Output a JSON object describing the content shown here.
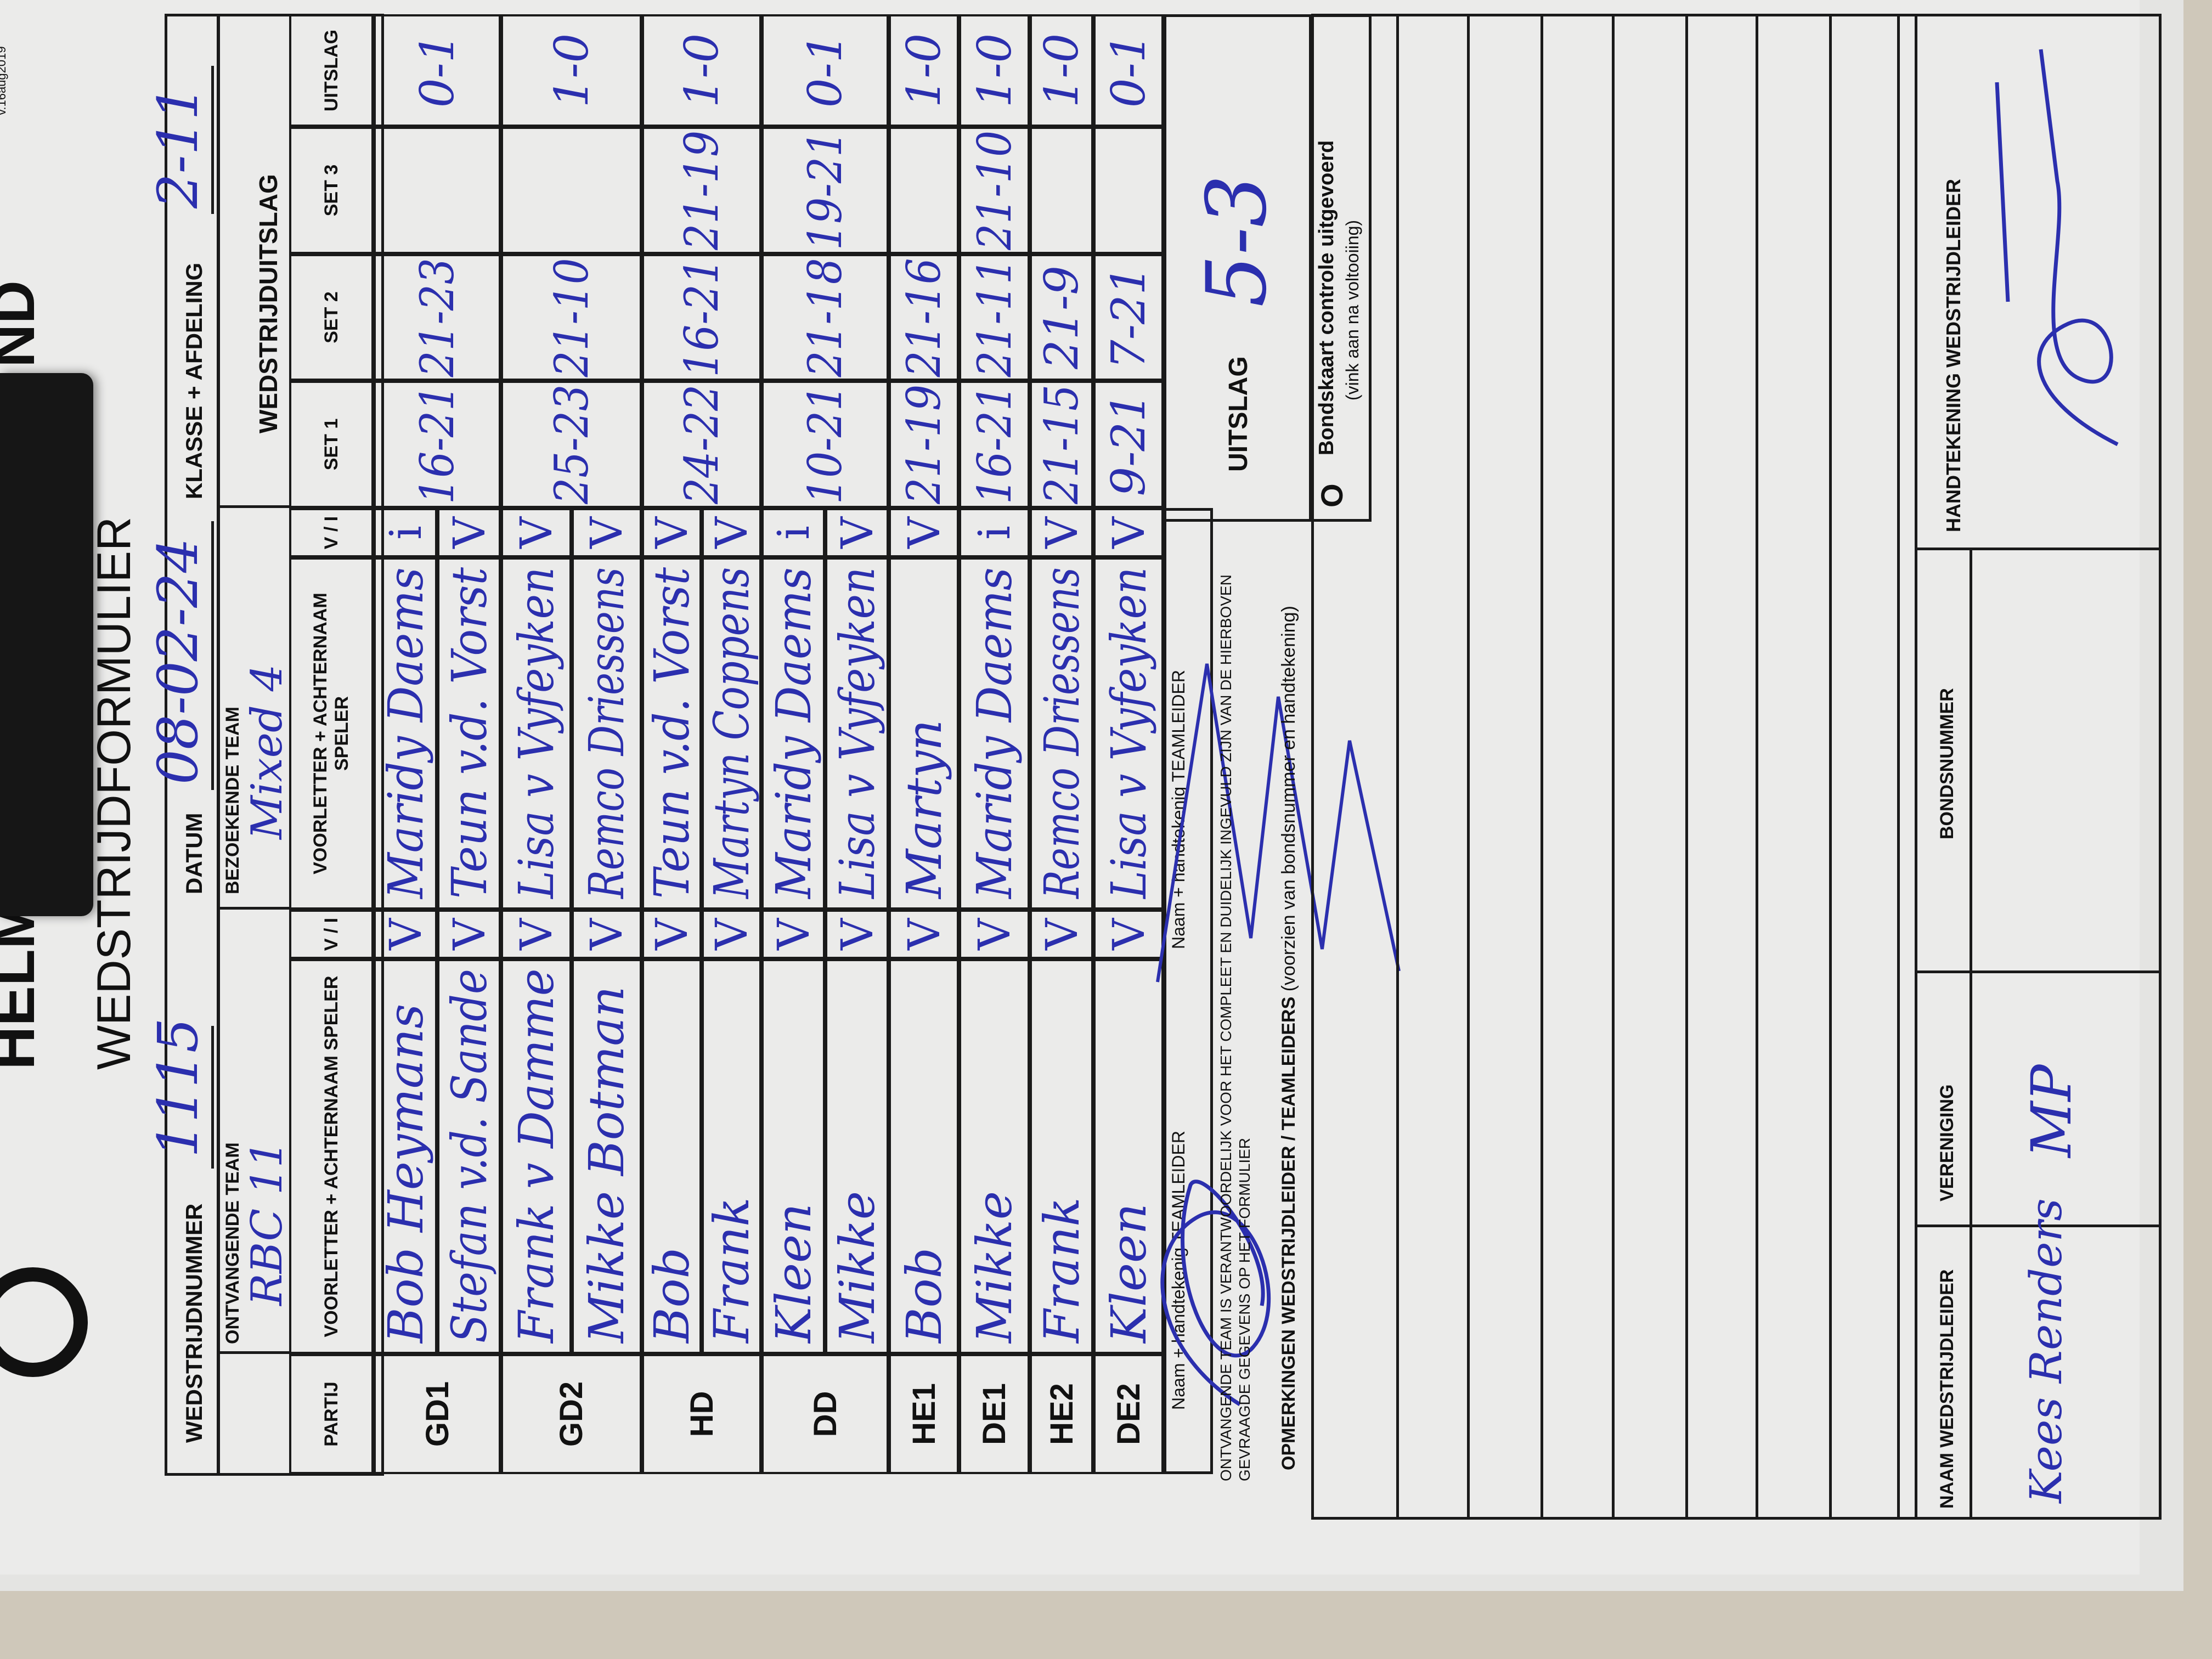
{
  "header": {
    "logo_text": "HELMO",
    "logo_text_right": "ND",
    "title": "WEDSTRIJDFORMULIER",
    "version": "v.16aug2019",
    "wedstrijdnummer_label": "WEDSTRIJDNUMMER",
    "wedstrijdnummer": "1115",
    "datum_label": "DATUM",
    "datum": "08-02-24",
    "klasse_label": "KLASSE + AFDELING",
    "klasse": "2-11",
    "ontvangende_label": "ONTVANGENDE TEAM",
    "ontvangende": "RBC 11",
    "bezoekende_label": "BEZOEKENDE TEAM",
    "bezoekende": "Mixed 4",
    "wedstrijduitslag_label": "WEDSTRIJDUITSLAG"
  },
  "columns": {
    "partij": "PARTIJ",
    "speler": "VOORLETTER + ACHTERNAAM SPELER",
    "vi": "V / I",
    "set1": "SET 1",
    "set2": "SET 2",
    "set3": "SET 3",
    "uitslag": "UITSLAG"
  },
  "matches": [
    {
      "partij": "GD1",
      "home": [
        "Bob Heymans",
        "Stefan v.d. Sande"
      ],
      "home_vi": [
        "V",
        "V"
      ],
      "away": [
        "Maridy Daems",
        "Teun v.d. Vorst"
      ],
      "away_vi": [
        "i",
        "V"
      ],
      "set1": "16-21",
      "set2": "21-23",
      "set3": "",
      "uitslag": "0-1"
    },
    {
      "partij": "GD2",
      "home": [
        "Frank v Damme",
        "Mikke Botman"
      ],
      "home_vi": [
        "V",
        "V"
      ],
      "away": [
        "Lisa v Vyfeyken",
        "Remco Driessens"
      ],
      "away_vi": [
        "V",
        "V"
      ],
      "set1": "25-23",
      "set2": "21-10",
      "set3": "",
      "uitslag": "1-0"
    },
    {
      "partij": "HD",
      "home": [
        "Bob",
        "Frank"
      ],
      "home_vi": [
        "V",
        "V"
      ],
      "away": [
        "Teun v.d. Vorst",
        "Martyn Coppens"
      ],
      "away_vi": [
        "V",
        "V"
      ],
      "set1": "24-22",
      "set2": "16-21",
      "set3": "21-19",
      "uitslag": "1-0"
    },
    {
      "partij": "DD",
      "home": [
        "Kleen",
        "Mikke"
      ],
      "home_vi": [
        "V",
        "V"
      ],
      "away": [
        "Maridy Daems",
        "Lisa v Vyfeyken"
      ],
      "away_vi": [
        "i",
        "V"
      ],
      "set1": "10-21",
      "set2": "21-18",
      "set3": "19-21",
      "uitslag": "0-1"
    },
    {
      "partij": "HE1",
      "home": [
        "Bob"
      ],
      "home_vi": [
        "V"
      ],
      "away": [
        "Martyn"
      ],
      "away_vi": [
        "V"
      ],
      "set1": "21-19",
      "set2": "21-16",
      "set3": "",
      "uitslag": "1-0"
    },
    {
      "partij": "DE1",
      "home": [
        "Mikke"
      ],
      "home_vi": [
        "V"
      ],
      "away": [
        "Maridy Daems"
      ],
      "away_vi": [
        "i"
      ],
      "set1": "16-21",
      "set2": "21-11",
      "set3": "21-10",
      "uitslag": "1-0"
    },
    {
      "partij": "HE2",
      "home": [
        "Frank"
      ],
      "home_vi": [
        "V"
      ],
      "away": [
        "Remco Driessens"
      ],
      "away_vi": [
        "V"
      ],
      "set1": "21-15",
      "set2": "21-9",
      "set3": "",
      "uitslag": "1-0"
    },
    {
      "partij": "DE2",
      "home": [
        "Kleen"
      ],
      "home_vi": [
        "V"
      ],
      "away": [
        "Lisa v Vyfeyken"
      ],
      "away_vi": [
        "V"
      ],
      "set1": "9-21",
      "set2": "7-21",
      "set3": "",
      "uitslag": "0-1"
    }
  ],
  "footer": {
    "teamleider_label_home": "Naam + handtekenig TEAMLEIDER",
    "teamleider_label_away": "Naam + handtekenig TEAMLEIDER",
    "uitslag_label": "UITSLAG",
    "uitslag_total": "5-3",
    "responsibility_note": "ONTVANGENDE TEAM IS VERANTWOORDELIJK VOOR HET COMPLEET EN DUIDELIJK INGEVULD ZIJN VAN DE HIERBOVEN GEVRAAGDE GEGEVENS OP HET FORMULIER",
    "opmerkingen_label": "OPMERKINGEN WEDSTRIJDLEIDER / TEAMLEIDERS",
    "opmerkingen_hint": "(voorzien van bondsnummer en handtekening)",
    "bondskaart_checkbox": "O",
    "bondskaart_label": "Bondskaart controle uitgevoerd",
    "bondskaart_hint": "(vink aan na voltooiing)",
    "naam_wl_label": "NAAM WEDSTRIJDLEIDER",
    "naam_wl": "Kees Renders",
    "vereniging_label": "VERENIGING",
    "vereniging": "MP",
    "bondsnummer_label": "BONDSNUMMER",
    "handtekening_label": "HANDTEKENING WEDSTRIJDLEIDER"
  },
  "colors": {
    "ink": "#2b2fae",
    "print": "#1a1a1a",
    "paper": "#ebebea"
  }
}
